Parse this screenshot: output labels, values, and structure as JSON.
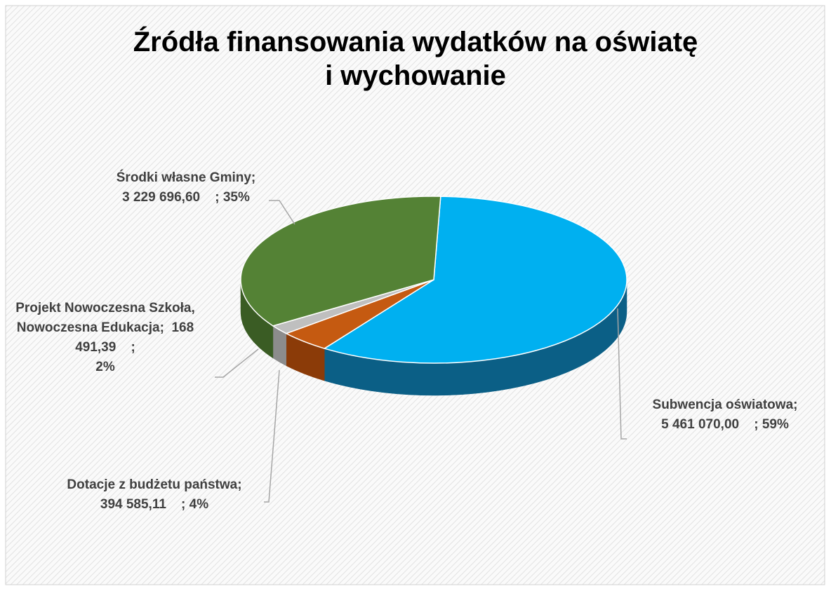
{
  "chart_data": {
    "type": "pie3d",
    "title": [
      "Źródła finansowania  wydatków na oświatę",
      "i wychowanie"
    ],
    "categories": [
      "Subwencja oświatowa",
      "Dotacje z budżetu państwa",
      "Projekt Nowoczesna Szkoła, Nowoczesna Edukacja",
      "Środki własne Gminy"
    ],
    "values": [
      5461070.0,
      394585.11,
      168491.39,
      3229696.6
    ],
    "value_labels": [
      "5 461 070,00",
      "394 585,11",
      "168 491,39",
      "3 229 696,60"
    ],
    "percents": [
      59,
      4,
      2,
      35
    ],
    "percent_labels": [
      "59%",
      "4%",
      "2%",
      "35%"
    ],
    "separator": ";",
    "colors": [
      "#00b0f0",
      "#c55a11",
      "#bfbfbf",
      "#548235"
    ],
    "side_colors": [
      "#0b5f86",
      "#8b3b08",
      "#8c8c8c",
      "#3a5c24"
    ]
  }
}
